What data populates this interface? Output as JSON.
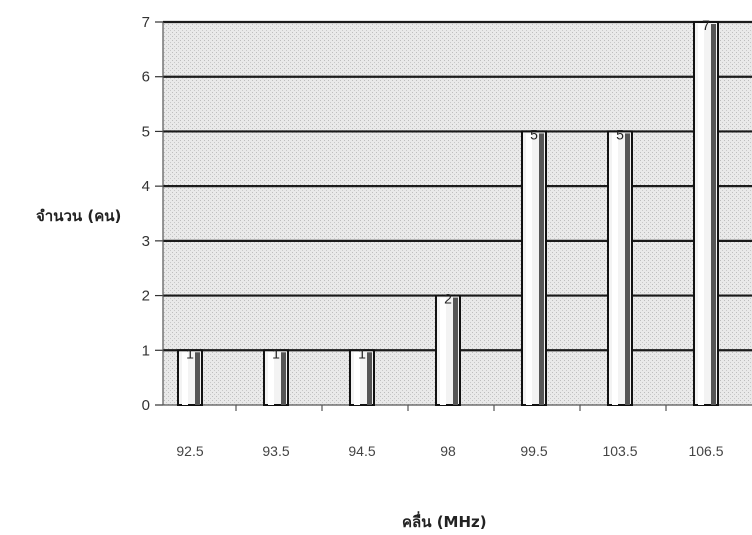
{
  "chart_data": {
    "type": "bar",
    "title": "",
    "xlabel": "คลื่น (MHz)",
    "ylabel": "จำนวน (คน)",
    "categories": [
      "92.5",
      "93.5",
      "94.5",
      "98",
      "99.5",
      "103.5",
      "106.5"
    ],
    "values": [
      1,
      1,
      1,
      2,
      5,
      5,
      7
    ],
    "data_labels": [
      "1",
      "1",
      "1",
      "2",
      "5",
      "5",
      "7"
    ],
    "yticks": [
      "0",
      "1",
      "2",
      "3",
      "4",
      "5",
      "6",
      "7"
    ],
    "ylim": [
      0,
      7
    ],
    "grid": true,
    "legend": "none",
    "colors": {
      "plot_background": "#e6e6e6",
      "bar_fill": "#f3f3f3",
      "bar_edge": "#111111",
      "gridline": "#1a1a1a"
    }
  }
}
